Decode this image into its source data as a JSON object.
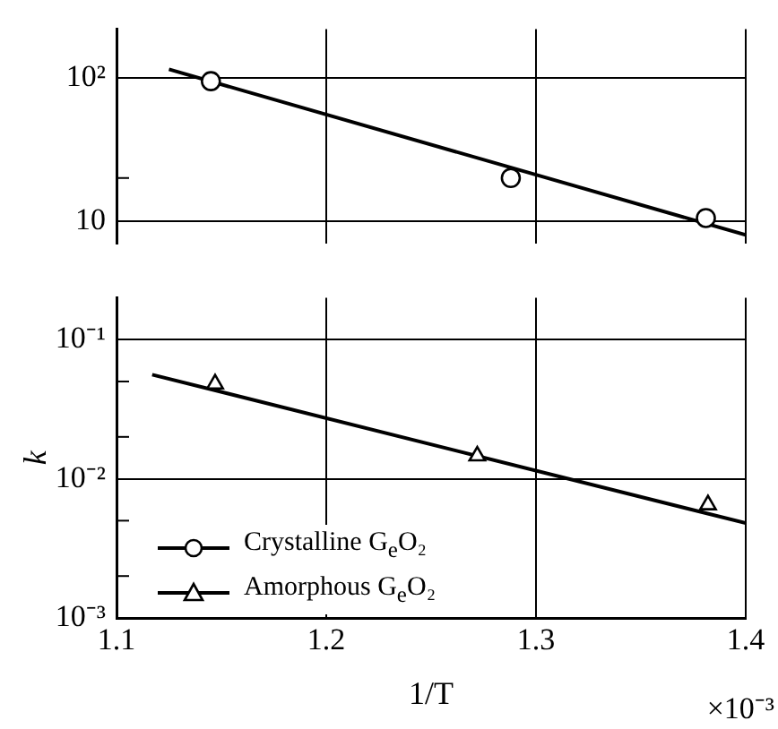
{
  "chart_data": [
    {
      "type": "scatter",
      "log": "y",
      "grid": true,
      "tick_labels": "y",
      "xlim": [
        1.1,
        1.4
      ],
      "xticks": [
        1.1,
        1.2,
        1.3,
        1.4
      ],
      "ylim": [
        7,
        220
      ],
      "yticks": [
        {
          "value": 10,
          "label": "10"
        },
        {
          "value": 20,
          "label": null
        },
        {
          "value": 100,
          "label": "10²"
        }
      ],
      "series": [
        {
          "name": "Crystalline G$_{e}$O₂",
          "type": "scatter",
          "marker": "circle",
          "color": "#000000",
          "x": [
            1.145,
            1.288,
            1.381
          ],
          "values": [
            95,
            20,
            10.5
          ]
        },
        {
          "type": "line",
          "color": "#000000",
          "x": [
            1.125,
            1.4
          ],
          "values": [
            115,
            8
          ]
        }
      ]
    },
    {
      "type": "scatter",
      "log": "y",
      "grid": true,
      "legend": "bottom left",
      "xlabel": "1/T",
      "ylabel": "k",
      "annotations": [
        "×10⁻³"
      ],
      "xlim": [
        1.1,
        1.4
      ],
      "xticks": [
        1.1,
        1.2,
        1.3,
        1.4
      ],
      "ylim": [
        0.001,
        0.2
      ],
      "yticks": [
        {
          "value": 0.001,
          "label": "10⁻³"
        },
        {
          "value": 0.002,
          "label": null
        },
        {
          "value": 0.005,
          "label": null
        },
        {
          "value": 0.01,
          "label": "10⁻²"
        },
        {
          "value": 0.02,
          "label": null
        },
        {
          "value": 0.05,
          "label": null
        },
        {
          "value": 0.1,
          "label": "10⁻¹"
        }
      ],
      "series": [
        {
          "name": "Amorphous G$_{e}$O₂",
          "type": "scatter",
          "marker": "triangle",
          "color": "#000000",
          "x": [
            1.147,
            1.272,
            1.382
          ],
          "values": [
            0.048,
            0.0146,
            0.0065
          ]
        },
        {
          "type": "line",
          "color": "#000000",
          "x": [
            1.117,
            1.4
          ],
          "values": [
            0.056,
            0.0048
          ]
        }
      ]
    }
  ]
}
